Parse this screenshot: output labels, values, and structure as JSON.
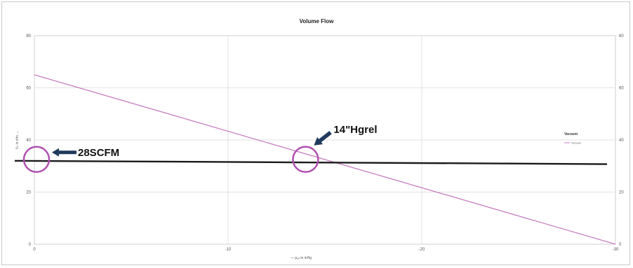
{
  "chart_data": {
    "type": "line",
    "title": "Volume Flow",
    "xlabel": "— pₐₙ in inHg",
    "ylabel": "Vₙ in cfm →",
    "xlim": [
      0,
      -30
    ],
    "ylim": [
      0,
      80
    ],
    "x_ticks": [
      "0",
      "-10",
      "-20",
      "-30"
    ],
    "y_ticks_left": [
      "0",
      "20",
      "40",
      "60",
      "80"
    ],
    "y_ticks_right": [
      "0",
      "20",
      "40",
      "60",
      "80"
    ],
    "grid": true,
    "legend": {
      "title": "Vacuum",
      "placement": "right",
      "entries": [
        "Vacuum"
      ]
    },
    "series": [
      {
        "name": "Vacuum",
        "color": "#c77dc0",
        "x": [
          0,
          -30
        ],
        "y": [
          65,
          0
        ]
      }
    ],
    "reference_line": {
      "color": "#1a1a1a",
      "x": [
        0,
        -30
      ],
      "y": [
        32,
        31
      ]
    },
    "annotations": [
      {
        "text": "28SCFM",
        "x": 0,
        "y": 32
      },
      {
        "text": "14\"Hgrel",
        "x": -14,
        "y": 32
      }
    ],
    "annotation_color": "#b04fb0",
    "arrow_color": "#1f3a5c"
  }
}
